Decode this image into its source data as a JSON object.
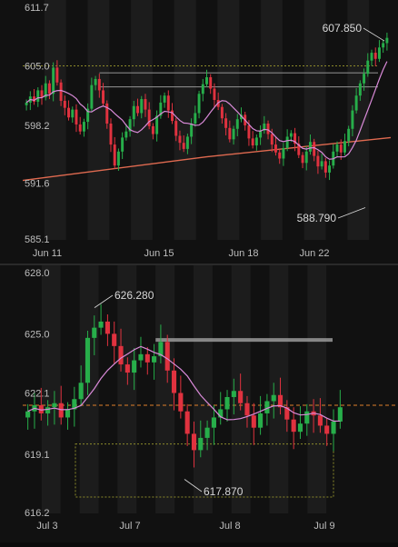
{
  "colors": {
    "background": "#111111",
    "band": "#1c1c1c",
    "up": "#27ae4a",
    "down": "#e0323f",
    "ma_fast": "#d98ad8",
    "ma_slow": "#e06a50",
    "level_line": "#9a9a9a",
    "dotted_box": "#8c8a2a",
    "dashed_level": "#e0802a",
    "axis_text": "#bdbdbd",
    "annotation_text": "#d8d8d8"
  },
  "chart_data": [
    {
      "type": "candlestick",
      "title": "",
      "ylim": [
        585.1,
        611.7
      ],
      "y_ticks": [
        "611.7",
        "605.0",
        "598.2",
        "591.6",
        "585.1"
      ],
      "y_tick_values": [
        611.7,
        605.0,
        598.2,
        591.6,
        585.1
      ],
      "x_ticks": [
        "Jun 11",
        "Jun 15",
        "Jun 18",
        "Jun 22"
      ],
      "annotations": [
        {
          "label": "607.850",
          "value": 607.85
        },
        {
          "label": "588.790",
          "value": 588.79
        }
      ],
      "levels": [
        604.2,
        602.6
      ],
      "dotted_level": 605.0,
      "series": [
        {
          "name": "",
          "kind": "ohlc_close",
          "values": [
            600.8,
            601.5,
            600.9,
            602.2,
            601.4,
            603.0,
            601.8,
            604.8,
            603.1,
            601.0,
            600.2,
            599.1,
            600.0,
            598.3,
            597.5,
            598.6,
            600.1,
            602.8,
            603.5,
            602.2,
            600.7,
            598.4,
            596.0,
            593.6,
            595.2,
            596.8,
            597.5,
            598.9,
            600.4,
            599.6,
            601.2,
            600.0,
            598.1,
            597.2,
            599.3,
            600.8,
            601.6,
            599.9,
            598.7,
            597.0,
            596.2,
            595.5,
            596.9,
            598.4,
            599.6,
            601.8,
            602.9,
            603.7,
            602.4,
            601.1,
            600.3,
            599.0,
            597.9,
            596.6,
            597.8,
            598.9,
            599.4,
            598.2,
            596.7,
            595.9,
            596.8,
            597.6,
            598.4,
            597.2,
            596.0,
            595.1,
            594.4,
            595.6,
            596.9,
            597.3,
            596.1,
            594.8,
            593.9,
            595.2,
            596.3,
            594.7,
            593.5,
            594.1,
            592.8,
            593.6,
            595.2,
            596.0,
            595.1,
            596.4,
            597.8,
            599.9,
            601.6,
            603.0,
            604.1,
            605.6,
            606.5,
            605.8,
            607.1,
            607.6,
            608.2
          ]
        },
        {
          "name": "",
          "kind": "moving_average_fast"
        },
        {
          "name": "",
          "kind": "moving_average_slow",
          "values": [
            591.9,
            594.6,
            596.8
          ]
        }
      ]
    },
    {
      "type": "candlestick",
      "title": "",
      "ylim": [
        616.2,
        628.0
      ],
      "y_ticks": [
        "628.0",
        "625.0",
        "622.1",
        "619.1",
        "616.2"
      ],
      "y_tick_values": [
        628.0,
        625.0,
        622.1,
        619.1,
        616.2
      ],
      "x_ticks": [
        "Jul 3",
        "Jul 7",
        "Jul 8",
        "Jul 9"
      ],
      "annotations": [
        {
          "label": "626.280",
          "value": 626.28
        },
        {
          "label": "617.870",
          "value": 617.87
        }
      ],
      "levels": [
        624.7
      ],
      "dashed_level": 621.5,
      "dotted_box": [
        617.0,
        619.6
      ],
      "series": [
        {
          "name": "",
          "kind": "ohlc_close",
          "values": [
            621.2,
            621.5,
            621.1,
            621.4,
            621.6,
            620.9,
            621.3,
            621.8,
            622.6,
            624.8,
            625.3,
            625.6,
            625.0,
            624.4,
            623.5,
            623.1,
            623.7,
            624.0,
            623.6,
            623.9,
            624.6,
            623.2,
            622.1,
            621.2,
            620.1,
            619.3,
            619.9,
            620.4,
            620.9,
            621.3,
            621.9,
            622.2,
            621.6,
            621.0,
            620.4,
            621.1,
            621.7,
            622.0,
            621.4,
            620.8,
            620.2,
            620.6,
            621.2,
            621.0,
            620.5,
            620.1,
            620.7,
            621.4
          ]
        },
        {
          "name": "",
          "kind": "moving_average_fast"
        }
      ]
    }
  ]
}
